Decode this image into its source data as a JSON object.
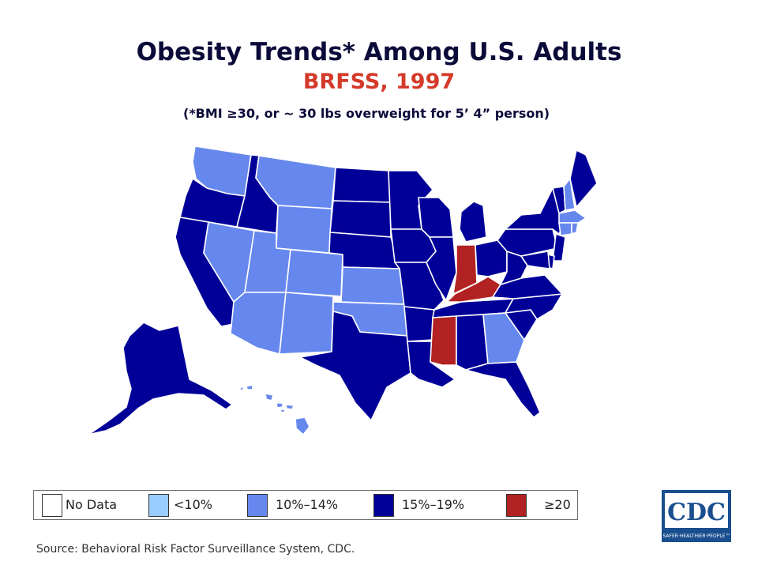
{
  "title": "Obesity Trends* Among U.S. Adults",
  "subtitle": "BRFSS, 1997",
  "note": "(*BMI ≥30, or ~ 30 lbs overweight for 5’ 4” person)",
  "colors": {
    "no_data": "#ffffff",
    "lt10": "#99ccff",
    "c10_14": "#6688ee",
    "c15_19": "#000099",
    "ge20": "#b22222"
  },
  "legend": [
    {
      "label": "No Data",
      "color": "#ffffff"
    },
    {
      "label": "<10%",
      "color": "#99ccff"
    },
    {
      "label": "10%–14%",
      "color": "#6688ee"
    },
    {
      "label": "15%–19%",
      "color": "#000099"
    },
    {
      "label": "≥20",
      "color": "#b22222"
    }
  ],
  "states": {
    "WA": "c10_14",
    "OR": "c15_19",
    "CA": "c15_19",
    "ID": "c15_19",
    "NV": "c10_14",
    "MT": "c10_14",
    "WY": "c10_14",
    "UT": "c10_14",
    "AZ": "c10_14",
    "CO": "c10_14",
    "NM": "c10_14",
    "ND": "c15_19",
    "SD": "c15_19",
    "NE": "c15_19",
    "KS": "c10_14",
    "OK": "c10_14",
    "TX": "c15_19",
    "MN": "c15_19",
    "IA": "c15_19",
    "MO": "c15_19",
    "AR": "c15_19",
    "LA": "c15_19",
    "WI": "c15_19",
    "IL": "c15_19",
    "MI": "c15_19",
    "IN": "ge20",
    "OH": "c15_19",
    "KY": "ge20",
    "TN": "c15_19",
    "MS": "ge20",
    "AL": "c15_19",
    "GA": "c10_14",
    "FL": "c15_19",
    "SC": "c15_19",
    "NC": "c15_19",
    "VA": "c15_19",
    "WV": "c15_19",
    "PA": "c15_19",
    "NY": "c15_19",
    "VT": "c15_19",
    "NH": "c10_14",
    "ME": "c15_19",
    "MA": "c10_14",
    "RI": "c10_14",
    "CT": "c10_14",
    "NJ": "c15_19",
    "DE": "c15_19",
    "MD": "c15_19",
    "AK": "c15_19",
    "HI": "c10_14"
  },
  "source": "Source: Behavioral Risk Factor Surveillance System, CDC.",
  "logo": {
    "text": "CDC",
    "tagline": "SAFER·HEALTHIER·PEOPLE™"
  }
}
